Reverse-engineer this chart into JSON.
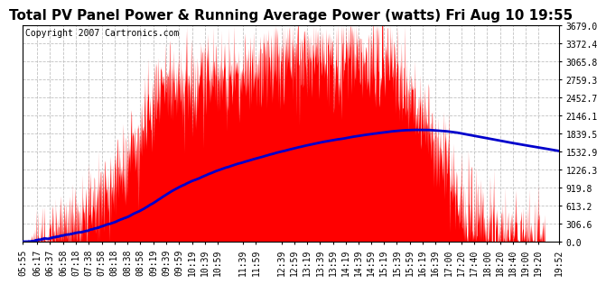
{
  "title": "Total PV Panel Power & Running Average Power (watts) Fri Aug 10 19:55",
  "copyright": "Copyright 2007 Cartronics.com",
  "background_color": "#ffffff",
  "plot_bg_color": "#ffffff",
  "yticks": [
    0.0,
    306.6,
    613.2,
    919.8,
    1226.3,
    1532.9,
    1839.5,
    2146.1,
    2452.7,
    2759.3,
    3065.8,
    3372.4,
    3679.0
  ],
  "ylim": [
    0,
    3679.0
  ],
  "xtick_labels": [
    "05:55",
    "06:17",
    "06:37",
    "06:58",
    "07:18",
    "07:38",
    "07:58",
    "08:18",
    "08:38",
    "08:58",
    "09:19",
    "09:39",
    "09:59",
    "10:19",
    "10:39",
    "10:59",
    "11:39",
    "11:59",
    "12:39",
    "12:59",
    "13:19",
    "13:39",
    "13:59",
    "14:19",
    "14:39",
    "14:59",
    "15:19",
    "15:39",
    "15:59",
    "16:19",
    "16:39",
    "17:00",
    "17:20",
    "17:40",
    "18:00",
    "18:20",
    "18:40",
    "19:00",
    "19:20",
    "19:52"
  ],
  "fill_color": "#ff0000",
  "line_color": "#0000cc",
  "line_width": 2.0,
  "grid_color": "#bbbbbb",
  "title_fontsize": 11,
  "copyright_fontsize": 7,
  "tick_fontsize": 7
}
